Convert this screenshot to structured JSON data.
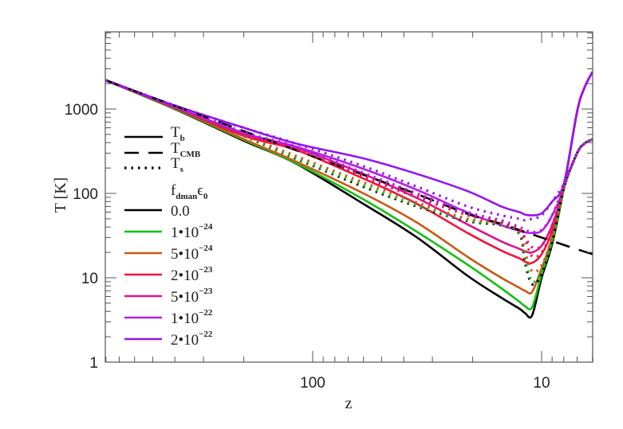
{
  "chart_data": {
    "type": "line",
    "title": "",
    "xlabel": "z",
    "ylabel": "T [K]",
    "xscale": "log",
    "yscale": "log",
    "x_reversed": true,
    "xlim": [
      800,
      6
    ],
    "ylim": [
      1,
      8200
    ],
    "x_ticks": [
      {
        "value": 100,
        "label": "100"
      },
      {
        "value": 10,
        "label": "10"
      }
    ],
    "y_ticks": [
      {
        "value": 1,
        "label": "1"
      },
      {
        "value": 10,
        "label": "10"
      },
      {
        "value": 100,
        "label": "100"
      },
      {
        "value": 1000,
        "label": "1000"
      }
    ],
    "grid": false,
    "legend_placement": "left",
    "legend_styles": [
      {
        "key": "Tb",
        "base": "T",
        "sub": "b",
        "style": "solid"
      },
      {
        "key": "Tcmb",
        "base": "T",
        "sub": "CMB",
        "style": "dashed"
      },
      {
        "key": "Ts",
        "base": "T",
        "sub": "s",
        "style": "dotted"
      }
    ],
    "legend_header": {
      "f": "f",
      "f_sub": "dman",
      "eps": "ϵ",
      "eps_sub": "0"
    },
    "z": [
      800,
      400,
      200,
      119,
      60,
      35,
      21,
      15,
      12.5,
      11.8,
      11,
      10,
      9,
      8,
      7,
      6.5,
      6
    ],
    "Tcmb": [
      2183,
      1093,
      548,
      327,
      166,
      98,
      57,
      43.6,
      36.8,
      34.9,
      32.7,
      30,
      27.3,
      24.5,
      21.8,
      20.4,
      19.1
    ],
    "series": [
      {
        "name": "0.0",
        "mant": "0.0",
        "exp": "",
        "color": "#000000",
        "Tb": [
          2180,
          1000,
          420,
          228,
          75,
          30,
          10.5,
          5.8,
          4.3,
          3.8,
          3.6,
          10,
          25,
          115,
          930,
          1790,
          2750
        ],
        "Ts": [
          2180,
          1050,
          480,
          260,
          120,
          70,
          47,
          42,
          33,
          15,
          8.4,
          11,
          26,
          115,
          300,
          390,
          437
        ]
      },
      {
        "name": "1e-24",
        "mant": "1•10",
        "exp": "−24",
        "color": "#10c010",
        "Tb": [
          2180,
          1010,
          430,
          230,
          85,
          35,
          14.2,
          7.5,
          5.2,
          4.6,
          4.5,
          11,
          27,
          115,
          930,
          1790,
          2750
        ],
        "Ts": [
          2180,
          1055,
          485,
          265,
          125,
          72,
          48,
          43,
          34,
          17,
          9,
          12,
          27,
          115,
          300,
          390,
          437
        ]
      },
      {
        "name": "5e-24",
        "mant": "5•10",
        "exp": "−24",
        "color": "#c85a14",
        "Tb": [
          2185,
          1020,
          440,
          240,
          100,
          45,
          17.6,
          10,
          7.6,
          7,
          6.8,
          13,
          30,
          115,
          930,
          1790,
          2750
        ],
        "Ts": [
          2185,
          1060,
          490,
          280,
          135,
          78,
          50,
          44,
          35,
          20,
          12,
          14,
          30,
          115,
          300,
          390,
          437
        ]
      },
      {
        "name": "2e-23",
        "mant": "2•10",
        "exp": "−23",
        "color": "#f0143c",
        "Tb": [
          2190,
          1040,
          480,
          330,
          150,
          75,
          33.8,
          21,
          17,
          15.5,
          15,
          19,
          36,
          120,
          930,
          1790,
          2750
        ],
        "Ts": [
          2190,
          1070,
          510,
          335,
          155,
          90,
          55,
          45,
          36,
          28,
          18,
          20,
          36,
          118,
          300,
          390,
          437
        ]
      },
      {
        "name": "5e-23",
        "mant": "5•10",
        "exp": "−23",
        "color": "#dc1490",
        "Tb": [
          2190,
          1050,
          500,
          350,
          170,
          88,
          42.7,
          27,
          22,
          20.5,
          20,
          24,
          42,
          120,
          930,
          1790,
          2750
        ],
        "Ts": [
          2190,
          1075,
          520,
          350,
          165,
          95,
          57,
          46,
          37,
          30,
          23,
          24,
          42,
          120,
          300,
          390,
          437
        ]
      },
      {
        "name": "1e-22",
        "mant": "1•10",
        "exp": "−22",
        "color": "#b41ee6",
        "Tb": [
          2195,
          1060,
          520,
          360,
          195,
          110,
          59,
          42,
          36,
          34.5,
          34,
          36,
          55,
          125,
          930,
          1790,
          2750
        ],
        "Ts": [
          2195,
          1080,
          535,
          360,
          175,
          100,
          60,
          48,
          40,
          37,
          35,
          37,
          55,
          125,
          300,
          390,
          437
        ]
      },
      {
        "name": "2e-22",
        "mant": "2•10",
        "exp": "−22",
        "color": "#9614f0",
        "Tb": [
          2200,
          1100,
          600,
          392,
          260,
          170,
          106,
          70,
          60,
          56,
          55,
          58,
          80,
          130,
          930,
          1790,
          2750
        ],
        "Ts": [
          2200,
          1100,
          600,
          392,
          210,
          120,
          70,
          55,
          50,
          48,
          50,
          55,
          80,
          130,
          300,
          390,
          437
        ]
      }
    ]
  }
}
